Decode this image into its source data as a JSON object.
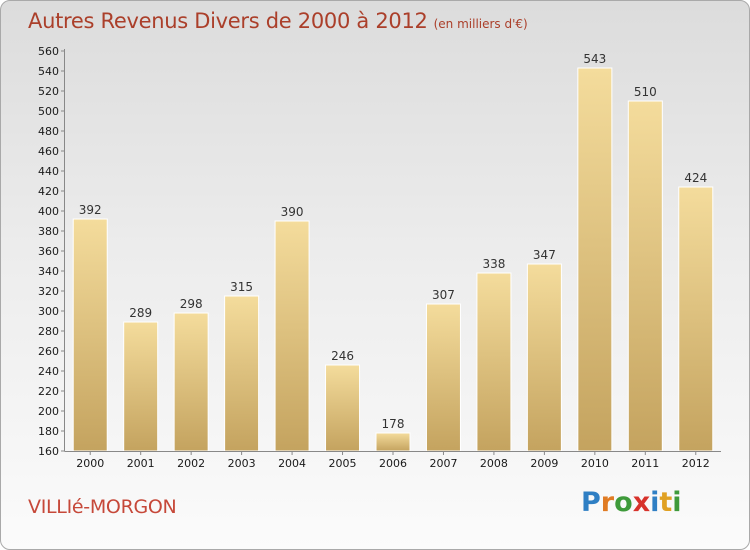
{
  "header": {
    "title": "Autres Revenus Divers de 2000 à 2012",
    "subtitle": "(en milliers d'€)"
  },
  "footer": {
    "place": "VILLIé-MORGON",
    "logo_letters": [
      "P",
      "r",
      "o",
      "x",
      "i",
      "t",
      "i"
    ],
    "logo_colors": [
      "#2f7fc4",
      "#e07b23",
      "#3e9a3a",
      "#d7322b",
      "#2f7fc4",
      "#e0a123",
      "#3e9a3a"
    ]
  },
  "colors": {
    "bar_top": "#f4dc9c",
    "bar_bottom": "#c4a35f",
    "title": "#ab3f2a"
  },
  "chart_data": {
    "type": "bar",
    "categories": [
      "2000",
      "2001",
      "2002",
      "2003",
      "2004",
      "2005",
      "2006",
      "2007",
      "2008",
      "2009",
      "2010",
      "2011",
      "2012"
    ],
    "values": [
      392,
      289,
      298,
      315,
      390,
      246,
      178,
      307,
      338,
      347,
      543,
      510,
      424
    ],
    "ylim": [
      160,
      560
    ],
    "yticks": [
      160,
      180,
      200,
      220,
      240,
      260,
      280,
      300,
      320,
      340,
      360,
      380,
      400,
      420,
      440,
      460,
      480,
      500,
      520,
      540,
      560
    ],
    "grid": false
  }
}
